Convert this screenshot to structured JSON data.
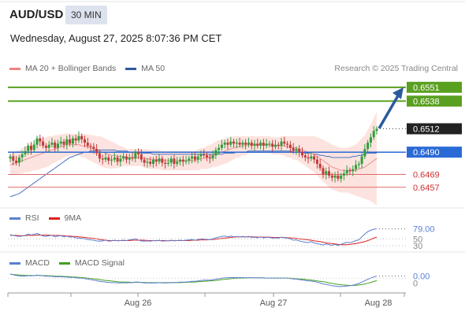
{
  "header": {
    "symbol": "AUD/USD",
    "timeframe": "30 MIN",
    "datetime": "Wednesday, August 27, 2025 8:07:36 PM CET"
  },
  "legend": {
    "ma20": {
      "label": "MA 20 + Bollinger Bands",
      "color": "#f08080"
    },
    "ma50": {
      "label": "MA 50",
      "color": "#2a5a9e"
    },
    "credit": "Research © 2025 Trading Central"
  },
  "rsi_legend": {
    "rsi": "RSI",
    "ma": "9MA",
    "rsi_color": "#5b7fd1",
    "ma_color": "#e02020"
  },
  "macd_legend": {
    "macd": "MACD",
    "signal": "MACD Signal",
    "macd_color": "#5b7fd1",
    "signal_color": "#44a020"
  },
  "colors": {
    "up": "#2e9e3e",
    "down": "#c23b3b",
    "resistance": "#5aa020",
    "support": "#e06a6a",
    "pivot": "#2a6ad6",
    "arrow": "#2a5a9e"
  },
  "chart_data": {
    "type": "candlestick",
    "ylim": [
      0.6442,
      0.6562
    ],
    "x_labels": [
      "Aug 26",
      "Aug 27",
      "Aug 28"
    ],
    "levels": [
      {
        "value": 0.6551,
        "label": "0.6551",
        "kind": "resistance"
      },
      {
        "value": 0.6538,
        "label": "0.6538",
        "kind": "resistance"
      },
      {
        "value": 0.6512,
        "label": "0.6512",
        "kind": "last"
      },
      {
        "value": 0.649,
        "label": "0.6490",
        "kind": "pivot"
      },
      {
        "value": 0.6469,
        "label": "0.6469",
        "kind": "support"
      },
      {
        "value": 0.6457,
        "label": "0.6457",
        "kind": "support"
      }
    ],
    "close": [
      0.6486,
      0.6482,
      0.648,
      0.6485,
      0.6488,
      0.6491,
      0.6496,
      0.6492,
      0.6497,
      0.6503,
      0.65,
      0.6496,
      0.6494,
      0.6497,
      0.6499,
      0.6494,
      0.6498,
      0.65,
      0.6497,
      0.6502,
      0.6498,
      0.6503,
      0.6501,
      0.6505,
      0.6502,
      0.6499,
      0.6496,
      0.6495,
      0.6493,
      0.6489,
      0.6484,
      0.6483,
      0.6485,
      0.6482,
      0.6483,
      0.6485,
      0.6481,
      0.6484,
      0.6486,
      0.6483,
      0.6485,
      0.6484,
      0.649,
      0.6488,
      0.6483,
      0.648,
      0.6481,
      0.6479,
      0.6483,
      0.6481,
      0.6484,
      0.648,
      0.6479,
      0.648,
      0.6484,
      0.6479,
      0.6481,
      0.6483,
      0.6481,
      0.6482,
      0.6484,
      0.6486,
      0.6483,
      0.6486,
      0.6488,
      0.6487,
      0.6485,
      0.6484,
      0.6487,
      0.6492,
      0.6494,
      0.6497,
      0.6499,
      0.6497,
      0.65,
      0.6498,
      0.6499,
      0.6497,
      0.6499,
      0.6497,
      0.6499,
      0.6496,
      0.6498,
      0.6496,
      0.6499,
      0.6496,
      0.6498,
      0.6498,
      0.6495,
      0.6497,
      0.6496,
      0.65,
      0.6498,
      0.6497,
      0.6494,
      0.6491,
      0.6493,
      0.649,
      0.6487,
      0.6485,
      0.6484,
      0.6486,
      0.6483,
      0.6479,
      0.6475,
      0.6469,
      0.6472,
      0.6468,
      0.6466,
      0.6468,
      0.6465,
      0.6468,
      0.647,
      0.6473,
      0.6472,
      0.6474,
      0.6478,
      0.6479,
      0.6486,
      0.6493,
      0.6499,
      0.6504,
      0.651,
      0.6512
    ],
    "ma20": [
      0.6478,
      0.6479,
      0.648,
      0.6481,
      0.6482,
      0.6483,
      0.6484,
      0.6485,
      0.6486,
      0.6487,
      0.6488,
      0.6489,
      0.649,
      0.6491,
      0.6492,
      0.6493,
      0.6494,
      0.6495,
      0.6496,
      0.6497,
      0.6497,
      0.6497,
      0.6497,
      0.6497,
      0.6496,
      0.6496,
      0.6495,
      0.6494,
      0.6493,
      0.6492,
      0.6491,
      0.649,
      0.6489,
      0.6488,
      0.6487,
      0.6487,
      0.6486,
      0.6486,
      0.6486,
      0.6485,
      0.6485,
      0.6485,
      0.6485,
      0.6485,
      0.6485,
      0.6484,
      0.6484,
      0.6483,
      0.6483,
      0.6483,
      0.6483,
      0.6482,
      0.6482,
      0.6482,
      0.6482,
      0.6482,
      0.6482,
      0.6482,
      0.6482,
      0.6482,
      0.6482,
      0.6482,
      0.6482,
      0.6483,
      0.6484,
      0.6484,
      0.6485,
      0.6486,
      0.6487,
      0.6488,
      0.6489,
      0.649,
      0.6491,
      0.6492,
      0.6493,
      0.6494,
      0.6495,
      0.6495,
      0.6496,
      0.6496,
      0.6497,
      0.6497,
      0.6497,
      0.6497,
      0.6497,
      0.6497,
      0.6497,
      0.6497,
      0.6496,
      0.6496,
      0.6496,
      0.6496,
      0.6496,
      0.6495,
      0.6495,
      0.6494,
      0.6494,
      0.6493,
      0.6492,
      0.6491,
      0.649,
      0.6489,
      0.6488,
      0.6486,
      0.6484,
      0.6482,
      0.648,
      0.6478,
      0.6476,
      0.6475,
      0.6474,
      0.6473,
      0.6473,
      0.6473,
      0.6473,
      0.6473,
      0.6473,
      0.6474,
      0.6475,
      0.6476,
      0.6478,
      0.648,
      0.6482,
      0.6484
    ],
    "bb_width": [
      0.001,
      0.001,
      0.0011,
      0.0011,
      0.0012,
      0.0012,
      0.0013,
      0.0013,
      0.0013,
      0.0014,
      0.0014,
      0.0014,
      0.0014,
      0.0014,
      0.0013,
      0.0013,
      0.0012,
      0.0012,
      0.0011,
      0.0011,
      0.001,
      0.001,
      0.001,
      0.001,
      0.0011,
      0.0011,
      0.0012,
      0.0012,
      0.0013,
      0.0013,
      0.0014,
      0.0014,
      0.0014,
      0.0013,
      0.0013,
      0.0012,
      0.0011,
      0.001,
      0.0009,
      0.0008,
      0.0008,
      0.0008,
      0.0008,
      0.0008,
      0.0008,
      0.0009,
      0.0009,
      0.0009,
      0.0009,
      0.0009,
      0.0009,
      0.0009,
      0.0009,
      0.0009,
      0.0009,
      0.0009,
      0.0009,
      0.0009,
      0.0009,
      0.0009,
      0.0009,
      0.0009,
      0.0009,
      0.001,
      0.001,
      0.001,
      0.0011,
      0.0011,
      0.0011,
      0.0012,
      0.0012,
      0.0012,
      0.0012,
      0.0012,
      0.0011,
      0.0011,
      0.001,
      0.001,
      0.0009,
      0.0009,
      0.0008,
      0.0008,
      0.0008,
      0.0008,
      0.0008,
      0.0008,
      0.0008,
      0.0008,
      0.0008,
      0.0008,
      0.0008,
      0.0009,
      0.0009,
      0.001,
      0.001,
      0.0011,
      0.0011,
      0.0012,
      0.0013,
      0.0014,
      0.0015,
      0.0016,
      0.0017,
      0.0018,
      0.0019,
      0.002,
      0.002,
      0.0021,
      0.0021,
      0.0021,
      0.0021,
      0.0021,
      0.0021,
      0.0021,
      0.0022,
      0.0023,
      0.0024,
      0.0026,
      0.0028,
      0.003,
      0.0033,
      0.0036,
      0.004,
      0.0044
    ],
    "ma50": [
      0.6448,
      0.6449,
      0.645,
      0.6451,
      0.6453,
      0.6455,
      0.6457,
      0.6459,
      0.6461,
      0.6463,
      0.6465,
      0.6467,
      0.6469,
      0.6471,
      0.6473,
      0.6475,
      0.6477,
      0.6479,
      0.6481,
      0.6483,
      0.6485,
      0.6486,
      0.6487,
      0.6488,
      0.6489,
      0.649,
      0.649,
      0.6491,
      0.6491,
      0.6492,
      0.6492,
      0.6492,
      0.6492,
      0.6492,
      0.6492,
      0.6492,
      0.6491,
      0.6491,
      0.6491,
      0.6491,
      0.649,
      0.649,
      0.649,
      0.649,
      0.6489,
      0.6489,
      0.6489,
      0.6489,
      0.6488,
      0.6488,
      0.6488,
      0.6488,
      0.6488,
      0.6488,
      0.6488,
      0.6488,
      0.6488,
      0.6488,
      0.6488,
      0.6488,
      0.6488,
      0.6488,
      0.6488,
      0.6488,
      0.6488,
      0.6488,
      0.6488,
      0.6488,
      0.6488,
      0.6488,
      0.6488,
      0.6488,
      0.6489,
      0.6489,
      0.6489,
      0.6489,
      0.649,
      0.649,
      0.649,
      0.649,
      0.6491,
      0.6491,
      0.6491,
      0.6491,
      0.6491,
      0.6491,
      0.6491,
      0.6491,
      0.6491,
      0.6491,
      0.6491,
      0.6491,
      0.6491,
      0.6491,
      0.6491,
      0.649,
      0.649,
      0.649,
      0.649,
      0.6489,
      0.6489,
      0.6489,
      0.6488,
      0.6488,
      0.6487,
      0.6487,
      0.6486,
      0.6486,
      0.6485,
      0.6485,
      0.6485,
      0.6485,
      0.6485,
      0.6485,
      0.6485,
      0.6486,
      0.6486,
      0.6487,
      0.6487,
      0.6488,
      0.6489,
      0.6489,
      0.6489,
      0.6489
    ],
    "rsi": {
      "ylim": [
        30,
        85
      ],
      "levels": [
        "50",
        "30"
      ],
      "last_label": "79.00",
      "rsi": [
        62,
        60,
        58,
        57,
        58,
        60,
        64,
        61,
        63,
        66,
        62,
        58,
        57,
        59,
        60,
        56,
        58,
        59,
        56,
        58,
        55,
        56,
        53,
        52,
        51,
        50,
        48,
        47,
        46,
        44,
        43,
        44,
        46,
        43,
        44,
        46,
        44,
        45,
        46,
        45,
        47,
        48,
        50,
        46,
        44,
        43,
        44,
        43,
        45,
        44,
        46,
        43,
        44,
        44,
        46,
        44,
        45,
        46,
        45,
        46,
        47,
        48,
        46,
        48,
        50,
        49,
        48,
        48,
        50,
        53,
        55,
        57,
        58,
        56,
        58,
        56,
        57,
        55,
        57,
        55,
        57,
        54,
        55,
        53,
        56,
        53,
        54,
        54,
        52,
        53,
        52,
        55,
        53,
        52,
        50,
        46,
        47,
        44,
        42,
        40,
        39,
        42,
        38,
        36,
        34,
        32,
        35,
        33,
        31,
        34,
        31,
        34,
        37,
        40,
        39,
        41,
        45,
        47,
        56,
        64,
        71,
        75,
        78,
        79
      ],
      "ma": [
        60,
        60,
        60,
        59,
        59,
        59,
        60,
        60,
        60,
        61,
        61,
        61,
        61,
        61,
        60,
        60,
        60,
        59,
        59,
        58,
        58,
        57,
        57,
        56,
        55,
        54,
        53,
        52,
        51,
        50,
        48,
        47,
        46,
        45,
        45,
        45,
        45,
        45,
        45,
        45,
        45,
        46,
        46,
        46,
        46,
        46,
        45,
        45,
        45,
        45,
        45,
        45,
        45,
        44,
        45,
        45,
        45,
        45,
        45,
        45,
        45,
        46,
        46,
        46,
        47,
        47,
        47,
        48,
        48,
        49,
        50,
        51,
        52,
        53,
        54,
        55,
        56,
        56,
        56,
        56,
        56,
        56,
        56,
        55,
        55,
        55,
        55,
        55,
        54,
        54,
        54,
        54,
        54,
        53,
        53,
        52,
        51,
        50,
        49,
        48,
        47,
        46,
        44,
        43,
        42,
        40,
        38,
        37,
        36,
        35,
        34,
        33,
        33,
        33,
        34,
        35,
        36,
        38,
        40,
        42,
        45,
        48,
        52,
        55
      ]
    },
    "macd": {
      "ylim": [
        -0.0006,
        0.0003
      ],
      "last_label": "0.00",
      "zero_label": "0",
      "macd": [
        0.0002,
        0.00016,
        0.00013,
        0.00011,
        0.0001,
        0.0001,
        0.00012,
        0.00011,
        0.00012,
        0.00014,
        0.00013,
        0.00011,
        9e-05,
        9e-05,
        9e-05,
        7e-05,
        7e-05,
        7e-05,
        6e-05,
        6e-05,
        4e-05,
        4e-05,
        2e-05,
        1e-05,
        0.0,
        -2e-05,
        -4e-05,
        -6e-05,
        -8e-05,
        -0.00011,
        -0.00014,
        -0.00016,
        -0.00017,
        -0.00019,
        -0.0002,
        -0.0002,
        -0.00021,
        -0.00021,
        -0.0002,
        -0.00021,
        -0.0002,
        -0.0002,
        -0.00017,
        -0.00018,
        -0.00019,
        -0.00021,
        -0.00021,
        -0.00022,
        -0.00021,
        -0.00021,
        -0.0002,
        -0.00021,
        -0.00021,
        -0.00021,
        -0.00019,
        -0.0002,
        -0.00019,
        -0.00018,
        -0.00018,
        -0.00017,
        -0.00016,
        -0.00014,
        -0.00014,
        -0.00012,
        -0.0001,
        -9e-05,
        -9e-05,
        -9e-05,
        -7e-05,
        -4e-05,
        -2e-05,
        0.0,
        2e-05,
        2e-05,
        3e-05,
        3e-05,
        3e-05,
        3e-05,
        3e-05,
        2e-05,
        3e-05,
        2e-05,
        2e-05,
        1e-05,
        2e-05,
        1e-05,
        1e-05,
        1e-05,
        0.0,
        0.0,
        0.0,
        1e-05,
        1e-05,
        0.0,
        -1e-05,
        -3e-05,
        -4e-05,
        -6e-05,
        -8e-05,
        -0.0001,
        -0.00012,
        -0.00013,
        -0.00015,
        -0.00018,
        -0.00022,
        -0.00026,
        -0.00028,
        -0.00031,
        -0.00034,
        -0.00036,
        -0.00038,
        -0.00038,
        -0.00037,
        -0.00035,
        -0.00034,
        -0.00032,
        -0.00028,
        -0.00024,
        -0.00018,
        -0.00011,
        -5e-05,
        1e-05,
        6e-05,
        0.0001
      ],
      "signal": [
        0.00018,
        0.00017,
        0.00016,
        0.00015,
        0.00014,
        0.00013,
        0.00013,
        0.00013,
        0.00012,
        0.00013,
        0.00013,
        0.00012,
        0.00012,
        0.00011,
        0.00011,
        0.0001,
        9e-05,
        9e-05,
        8e-05,
        8e-05,
        7e-05,
        6e-05,
        5e-05,
        4e-05,
        3e-05,
        2e-05,
        1e-05,
        -1e-05,
        -2e-05,
        -4e-05,
        -6e-05,
        -8e-05,
        -0.0001,
        -0.00011,
        -0.00013,
        -0.00014,
        -0.00016,
        -0.00017,
        -0.00017,
        -0.00018,
        -0.00018,
        -0.00019,
        -0.00019,
        -0.00019,
        -0.00019,
        -0.00019,
        -0.0002,
        -0.0002,
        -0.0002,
        -0.0002,
        -0.0002,
        -0.0002,
        -0.0002,
        -0.0002,
        -0.0002,
        -0.0002,
        -0.0002,
        -0.0002,
        -0.00019,
        -0.00019,
        -0.00018,
        -0.00018,
        -0.00017,
        -0.00016,
        -0.00015,
        -0.00014,
        -0.00013,
        -0.00012,
        -0.00011,
        -0.0001,
        -8e-05,
        -6e-05,
        -5e-05,
        -3e-05,
        -2e-05,
        -1e-05,
        0.0,
        1e-05,
        1e-05,
        1e-05,
        2e-05,
        2e-05,
        2e-05,
        2e-05,
        2e-05,
        2e-05,
        1e-05,
        1e-05,
        1e-05,
        1e-05,
        1e-05,
        1e-05,
        1e-05,
        1e-05,
        0.0,
        -1e-05,
        -2e-05,
        -3e-05,
        -4e-05,
        -5e-05,
        -7e-05,
        -8e-05,
        -0.0001,
        -0.00012,
        -0.00014,
        -0.00016,
        -0.00018,
        -0.00021,
        -0.00023,
        -0.00026,
        -0.00028,
        -0.0003,
        -0.00031,
        -0.00032,
        -0.00033,
        -0.00033,
        -0.00032,
        -0.00031,
        -0.00029,
        -0.00026,
        -0.00023,
        -0.00019,
        -0.00015,
        -0.00011
      ]
    }
  }
}
